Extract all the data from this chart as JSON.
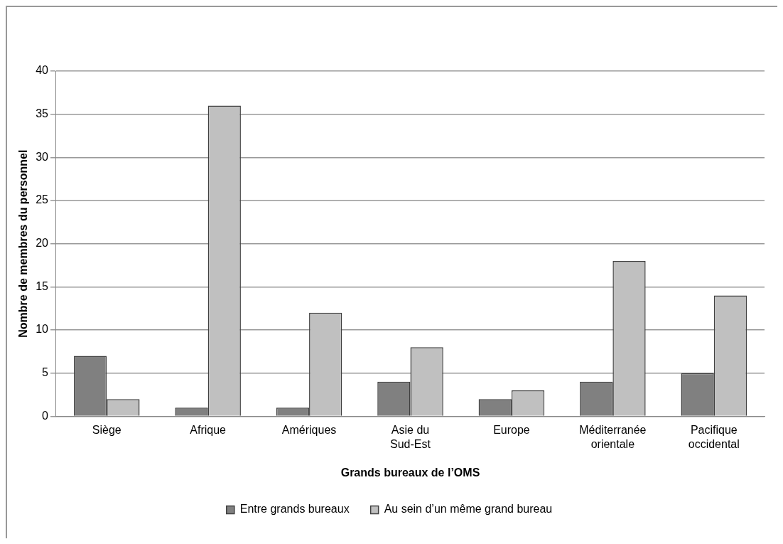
{
  "chart_data": {
    "type": "bar",
    "xlabel": "Grands bureaux de l’OMS",
    "ylabel": "Nombre de membres du personnel",
    "categories": [
      "Siège",
      "Afrique",
      "Amériques",
      "Asie du Sud-Est",
      "Europe",
      "Méditerranée orientale",
      "Pacifique occidental"
    ],
    "series": [
      {
        "name": "Entre grands bureaux",
        "color": "#808080",
        "values": [
          7,
          1,
          1,
          4,
          2,
          4,
          5
        ]
      },
      {
        "name": "Au sein d’un même grand bureau",
        "color": "#c0c0c0",
        "values": [
          2,
          36,
          12,
          8,
          3,
          18,
          14
        ]
      }
    ],
    "ylim": [
      0,
      40
    ],
    "yticks": [
      0,
      5,
      10,
      15,
      20,
      25,
      30,
      35,
      40
    ],
    "grid": "y",
    "legend": "bottom"
  }
}
